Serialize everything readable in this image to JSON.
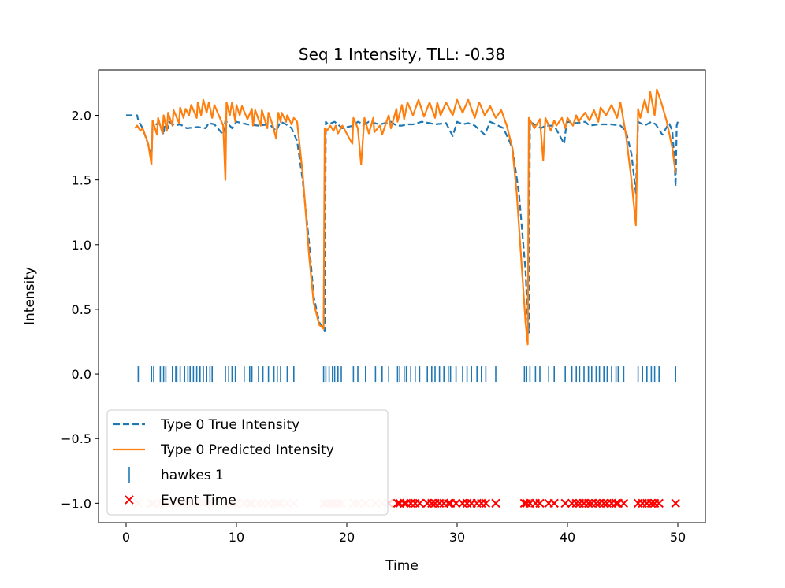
{
  "chart_data": {
    "type": "line",
    "title": "Seq 1 Intensity, TLL: -0.38",
    "xlabel": "Time",
    "ylabel": "Intensity",
    "xlim": [
      -2.5,
      52.5
    ],
    "ylim": [
      -1.15,
      2.35
    ],
    "xticks": [
      0,
      10,
      20,
      30,
      40,
      50
    ],
    "xtick_labels": [
      "0",
      "10",
      "20",
      "30",
      "40",
      "50"
    ],
    "yticks": [
      -1.0,
      -0.5,
      0.0,
      0.5,
      1.0,
      1.5,
      2.0
    ],
    "ytick_labels": [
      "−1.0",
      "−0.5",
      "0.0",
      "0.5",
      "1.0",
      "1.5",
      "2.0"
    ],
    "legend_position": "lower-left",
    "legend": [
      {
        "label": "Type 0 True Intensity",
        "marker": "dashed-line",
        "color": "#1f77b4"
      },
      {
        "label": "Type 0 Predicted Intensity",
        "marker": "solid-line",
        "color": "#ff7f0e"
      },
      {
        "label": "hawkes 1",
        "marker": "vertical-tick",
        "color": "#1f77b4"
      },
      {
        "label": "Event Time",
        "marker": "x",
        "color": "#ff0000"
      }
    ],
    "colors": {
      "true_intensity": "#1f77b4",
      "predicted_intensity": "#ff7f0e",
      "event_marker": "#ff0000",
      "event_marker_faded": "#ffcccc"
    },
    "true_intensity": {
      "x": [
        0,
        0.8,
        1.0,
        1.1,
        1.5,
        2.1,
        2.3,
        2.4,
        3.0,
        3.4,
        3.5,
        3.8,
        3.9,
        4.4,
        4.9,
        5.5,
        6.5,
        7.2,
        7.5,
        8.0,
        8.8,
        9.0,
        9.6,
        10.0,
        11.0,
        12.0,
        13.0,
        13.6,
        14.0,
        14.5,
        15.0,
        15.5,
        16.0,
        16.6,
        17.0,
        17.5,
        17.9,
        18.0,
        18.1,
        18.3,
        18.9,
        19.6,
        20.6,
        21.0,
        21.6,
        22.0,
        23.0,
        24.0,
        24.5,
        25.0,
        25.5,
        26.0,
        26.8,
        27.5,
        28.0,
        29.0,
        29.6,
        30.0,
        30.5,
        31.0,
        31.6,
        32.5,
        33.0,
        33.5,
        34.2,
        35.0,
        35.6,
        36.2,
        36.4,
        36.5,
        36.6,
        37.0,
        37.6,
        38.0,
        38.8,
        39.7,
        39.9,
        40.0,
        40.8,
        41.6,
        42.0,
        42.8,
        43.2,
        44.0,
        44.8,
        45.3,
        45.8,
        46.2,
        46.4,
        47.0,
        47.6,
        48.0,
        48.6,
        49.2,
        49.5,
        49.7,
        49.8,
        49.9,
        50.0
      ],
      "y": [
        2.0,
        2.0,
        2.0,
        1.96,
        1.9,
        1.75,
        1.66,
        1.92,
        1.94,
        1.85,
        1.93,
        1.9,
        1.95,
        1.92,
        1.93,
        1.9,
        1.91,
        1.9,
        1.94,
        1.93,
        1.85,
        1.96,
        1.9,
        1.95,
        1.93,
        1.92,
        1.93,
        1.88,
        1.95,
        1.93,
        1.9,
        1.8,
        1.5,
        1.0,
        0.6,
        0.4,
        0.35,
        0.33,
        1.95,
        1.93,
        1.95,
        1.9,
        1.92,
        1.95,
        1.93,
        1.95,
        1.93,
        1.95,
        1.92,
        1.92,
        1.93,
        1.93,
        1.95,
        1.94,
        1.93,
        1.94,
        1.84,
        1.95,
        1.93,
        1.94,
        1.92,
        1.85,
        1.95,
        1.93,
        1.9,
        1.75,
        1.4,
        0.8,
        0.4,
        0.32,
        1.95,
        1.93,
        1.9,
        1.92,
        1.92,
        1.78,
        1.93,
        1.95,
        1.94,
        1.95,
        1.92,
        1.93,
        1.93,
        1.93,
        1.92,
        1.88,
        1.7,
        1.4,
        1.95,
        1.92,
        1.95,
        1.93,
        1.85,
        1.94,
        1.88,
        1.65,
        1.45,
        1.92,
        1.95
      ]
    },
    "predicted_intensity": {
      "x": [
        0.8,
        1.0,
        1.3,
        1.5,
        2.0,
        2.3,
        2.4,
        2.8,
        2.9,
        3.3,
        3.4,
        3.7,
        3.8,
        4.2,
        4.3,
        4.8,
        4.9,
        5.2,
        5.4,
        5.7,
        5.9,
        6.4,
        6.5,
        6.8,
        7.0,
        7.3,
        7.5,
        7.8,
        8.0,
        8.8,
        9.0,
        9.1,
        9.4,
        9.6,
        9.9,
        10.0,
        10.3,
        10.5,
        11.0,
        11.4,
        11.5,
        11.7,
        12.2,
        12.3,
        12.8,
        12.9,
        13.3,
        13.6,
        13.8,
        14.0,
        14.1,
        14.5,
        14.6,
        15.0,
        15.2,
        15.5,
        16.0,
        16.6,
        17.0,
        17.5,
        17.9,
        18.0,
        18.2,
        18.5,
        18.8,
        19.0,
        19.2,
        19.6,
        20.5,
        20.6,
        21.0,
        21.3,
        21.6,
        22.0,
        22.4,
        22.5,
        23.0,
        23.2,
        23.8,
        24.0,
        24.5,
        24.6,
        25.0,
        25.2,
        25.5,
        26.0,
        26.5,
        27.0,
        27.5,
        28.0,
        28.2,
        28.5,
        29.0,
        29.6,
        30.0,
        30.5,
        31.0,
        31.6,
        32.0,
        32.5,
        33.0,
        33.5,
        34.0,
        34.5,
        35.0,
        35.4,
        35.8,
        36.2,
        36.4,
        36.5,
        37.0,
        37.5,
        37.8,
        38.0,
        38.5,
        38.8,
        39.0,
        39.5,
        39.8,
        40.0,
        40.5,
        40.8,
        41.0,
        41.6,
        42.0,
        42.4,
        42.8,
        43.0,
        43.5,
        44.0,
        44.5,
        44.8,
        45.0,
        45.3,
        45.8,
        46.2,
        46.4,
        46.6,
        47.0,
        47.3,
        47.5,
        47.9,
        48.1,
        48.5,
        49.0,
        49.5,
        49.8
      ],
      "y": [
        1.9,
        1.92,
        1.88,
        1.9,
        1.78,
        1.62,
        1.96,
        1.85,
        1.98,
        1.86,
        2.0,
        1.88,
        2.02,
        1.92,
        2.04,
        1.94,
        2.06,
        1.98,
        2.05,
        2.0,
        2.08,
        1.98,
        2.1,
        2.0,
        2.12,
        2.02,
        2.1,
        1.98,
        2.08,
        1.92,
        1.5,
        2.1,
        2.0,
        2.1,
        1.95,
        2.08,
        2.0,
        2.07,
        1.97,
        2.05,
        1.92,
        2.04,
        1.92,
        2.04,
        1.9,
        2.02,
        1.92,
        1.82,
        2.02,
        1.95,
        2.02,
        1.95,
        2.0,
        1.93,
        1.98,
        1.95,
        1.55,
        0.9,
        0.55,
        0.38,
        0.35,
        1.9,
        1.88,
        1.92,
        1.88,
        1.92,
        1.86,
        1.92,
        1.78,
        1.98,
        1.9,
        1.62,
        1.98,
        1.86,
        1.98,
        1.87,
        1.92,
        1.85,
        2.0,
        1.9,
        2.05,
        1.95,
        2.08,
        1.97,
        2.1,
        2.0,
        2.12,
        1.99,
        2.1,
        1.98,
        2.1,
        2.0,
        2.1,
        2.0,
        2.12,
        2.02,
        2.12,
        1.98,
        2.1,
        2.0,
        2.07,
        1.98,
        2.04,
        1.92,
        1.75,
        1.4,
        0.9,
        0.4,
        0.23,
        1.98,
        1.9,
        1.97,
        1.65,
        1.98,
        1.88,
        1.96,
        1.92,
        1.98,
        1.9,
        1.98,
        1.92,
        2.0,
        1.95,
        2.02,
        1.96,
        2.04,
        1.95,
        2.06,
        2.0,
        2.08,
        1.98,
        2.1,
        2.0,
        1.85,
        1.5,
        1.15,
        2.05,
        1.98,
        2.12,
        2.02,
        2.18,
        2.0,
        2.2,
        2.1,
        1.95,
        1.75,
        1.55
      ]
    },
    "event_times": [
      1.1,
      2.3,
      2.5,
      3.1,
      3.4,
      3.6,
      4.2,
      4.5,
      4.6,
      4.9,
      5.3,
      5.6,
      5.8,
      6.1,
      6.4,
      6.7,
      7.0,
      7.3,
      7.6,
      7.8,
      9.0,
      9.3,
      9.6,
      9.9,
      10.7,
      11.2,
      11.4,
      12.0,
      12.4,
      12.9,
      13.4,
      13.7,
      14.0,
      14.6,
      15.2,
      17.9,
      18.1,
      18.4,
      18.7,
      18.9,
      19.2,
      19.5,
      20.6,
      21.0,
      21.7,
      22.6,
      23.2,
      23.8,
      24.6,
      24.8,
      25.2,
      25.4,
      25.8,
      26.2,
      26.6,
      27.3,
      27.7,
      28.0,
      28.4,
      28.8,
      29.2,
      29.4,
      29.9,
      30.5,
      30.9,
      31.3,
      31.8,
      32.2,
      32.6,
      33.5,
      36.1,
      36.3,
      36.6,
      37.1,
      37.5,
      38.3,
      38.8,
      39.8,
      40.4,
      40.8,
      41.1,
      41.5,
      41.9,
      42.2,
      42.6,
      42.9,
      43.3,
      43.6,
      44.0,
      44.4,
      44.6,
      45.1,
      46.4,
      46.8,
      47.2,
      47.6,
      47.9,
      48.3,
      49.8
    ],
    "event_marker_level": -1.0,
    "hawkes_tick_level": 0.0,
    "faded_before_time": 24.0
  }
}
